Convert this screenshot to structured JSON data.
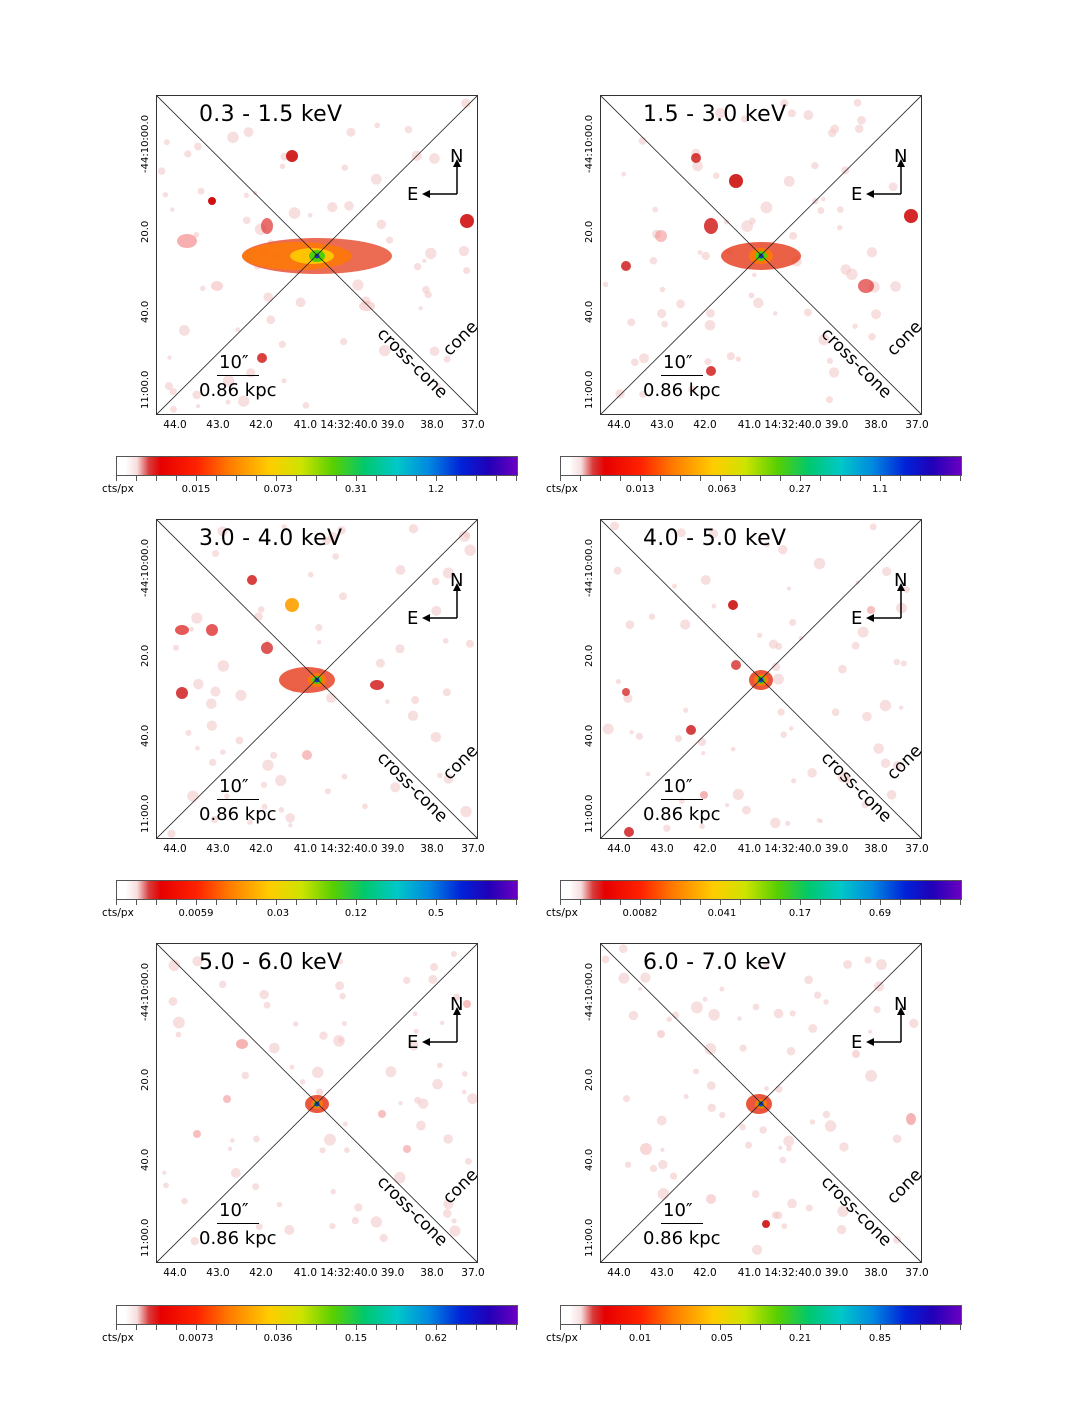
{
  "figure": {
    "panels": [
      {
        "band": "0.3 - 1.5 keV",
        "cbar_unit": "cts/px",
        "cbar_labels": [
          "0.015",
          "0.073",
          "0.31",
          "1.2"
        ]
      },
      {
        "band": "1.5 - 3.0 keV",
        "cbar_unit": "cts/px",
        "cbar_labels": [
          "0.013",
          "0.063",
          "0.27",
          "1.1"
        ]
      },
      {
        "band": "3.0 - 4.0 keV",
        "cbar_unit": "cts/px",
        "cbar_labels": [
          "0.0059",
          "0.03",
          "0.12",
          "0.5"
        ]
      },
      {
        "band": "4.0 - 5.0 keV",
        "cbar_unit": "cts/px",
        "cbar_labels": [
          "0.0082",
          "0.041",
          "0.17",
          "0.69"
        ]
      },
      {
        "band": "5.0 - 6.0 keV",
        "cbar_unit": "cts/px",
        "cbar_labels": [
          "0.0073",
          "0.036",
          "0.15",
          "0.62"
        ]
      },
      {
        "band": "6.0 - 7.0 keV",
        "cbar_unit": "cts/px",
        "cbar_labels": [
          "0.01",
          "0.05",
          "0.21",
          "0.85"
        ]
      }
    ],
    "common": {
      "scale_arcsec": "10″",
      "scale_kpc": "0.86 kpc",
      "compass_north": "N",
      "compass_east": "E",
      "cone_label": "cone",
      "cross_cone_label": "cross-cone",
      "x_ticks": [
        "44.0",
        "43.0",
        "42.0",
        "41.0 14:32:40.0 39.0",
        "38.0",
        "37.0"
      ],
      "y_ticks": [
        "-44:10:00.0",
        "20.0",
        "40.0",
        "11:00.0"
      ]
    }
  },
  "colors": {
    "cmap_low": "#ffffff",
    "cmap_red": "#e60000",
    "cmap_yellow": "#ffcc00",
    "cmap_green": "#00c86e",
    "cmap_blue": "#0022d8",
    "cmap_purple": "#6a00c0"
  }
}
